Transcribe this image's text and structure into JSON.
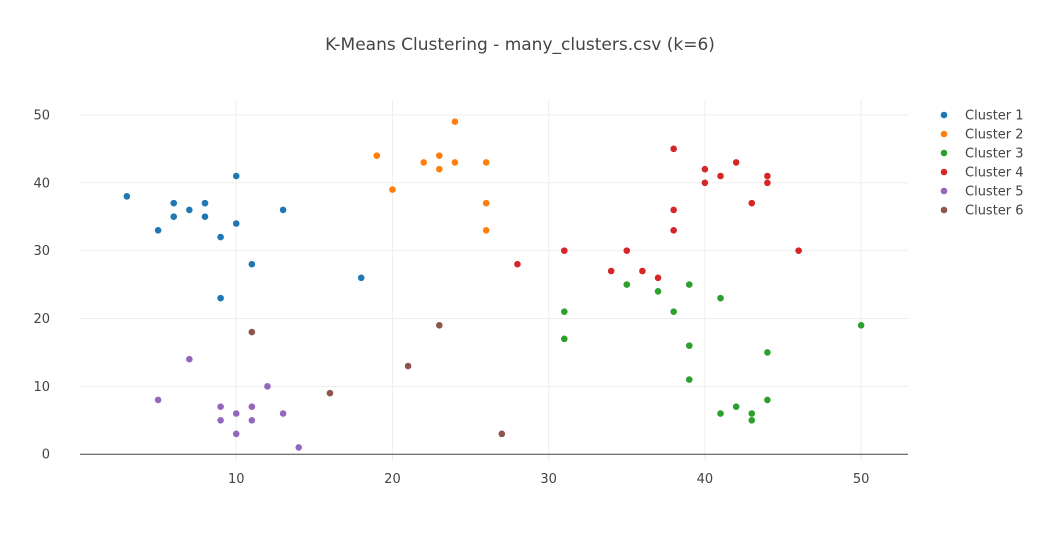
{
  "chart_data": {
    "type": "scatter",
    "title": "K-Means Clustering - many_clusters.csv (k=6)",
    "xlabel": "",
    "ylabel": "",
    "xlim": [
      0.0,
      53.0
    ],
    "ylim": [
      -1.0,
      52.2
    ],
    "x_ticks": [
      10,
      20,
      30,
      40,
      50
    ],
    "y_ticks": [
      0,
      10,
      20,
      30,
      40,
      50
    ],
    "grid": true,
    "legend_position": "top-right",
    "series": [
      {
        "name": "Cluster 1",
        "color": "#1f77b4",
        "points": [
          [
            3,
            38
          ],
          [
            5,
            33
          ],
          [
            6,
            37
          ],
          [
            6,
            35
          ],
          [
            7,
            36
          ],
          [
            8,
            37
          ],
          [
            8,
            35
          ],
          [
            9,
            32
          ],
          [
            9,
            23
          ],
          [
            10,
            41
          ],
          [
            10,
            34
          ],
          [
            11,
            28
          ],
          [
            13,
            36
          ],
          [
            18,
            26
          ]
        ]
      },
      {
        "name": "Cluster 2",
        "color": "#ff7f0e",
        "points": [
          [
            19,
            44
          ],
          [
            20,
            39
          ],
          [
            22,
            43
          ],
          [
            23,
            44
          ],
          [
            23,
            42
          ],
          [
            24,
            49
          ],
          [
            24,
            43
          ],
          [
            26,
            43
          ],
          [
            26,
            37
          ],
          [
            26,
            33
          ]
        ]
      },
      {
        "name": "Cluster 3",
        "color": "#2ca02c",
        "points": [
          [
            31,
            21
          ],
          [
            31,
            17
          ],
          [
            35,
            25
          ],
          [
            37,
            24
          ],
          [
            38,
            21
          ],
          [
            39,
            25
          ],
          [
            39,
            16
          ],
          [
            39,
            11
          ],
          [
            41,
            23
          ],
          [
            41,
            6
          ],
          [
            42,
            7
          ],
          [
            43,
            6
          ],
          [
            43,
            5
          ],
          [
            44,
            15
          ],
          [
            44,
            8
          ],
          [
            50,
            19
          ]
        ]
      },
      {
        "name": "Cluster 4",
        "color": "#d62728",
        "points": [
          [
            28,
            28
          ],
          [
            31,
            30
          ],
          [
            34,
            27
          ],
          [
            35,
            30
          ],
          [
            36,
            27
          ],
          [
            37,
            26
          ],
          [
            38,
            45
          ],
          [
            38,
            36
          ],
          [
            38,
            33
          ],
          [
            40,
            42
          ],
          [
            40,
            40
          ],
          [
            41,
            41
          ],
          [
            42,
            43
          ],
          [
            43,
            37
          ],
          [
            44,
            41
          ],
          [
            44,
            40
          ],
          [
            46,
            30
          ]
        ]
      },
      {
        "name": "Cluster 5",
        "color": "#9467bd",
        "points": [
          [
            5,
            8
          ],
          [
            7,
            14
          ],
          [
            9,
            7
          ],
          [
            9,
            5
          ],
          [
            10,
            6
          ],
          [
            10,
            3
          ],
          [
            11,
            7
          ],
          [
            11,
            5
          ],
          [
            12,
            10
          ],
          [
            13,
            6
          ],
          [
            14,
            1
          ]
        ]
      },
      {
        "name": "Cluster 6",
        "color": "#8c564b",
        "points": [
          [
            11,
            18
          ],
          [
            16,
            9
          ],
          [
            21,
            13
          ],
          [
            23,
            19
          ],
          [
            27,
            3
          ]
        ]
      }
    ]
  }
}
